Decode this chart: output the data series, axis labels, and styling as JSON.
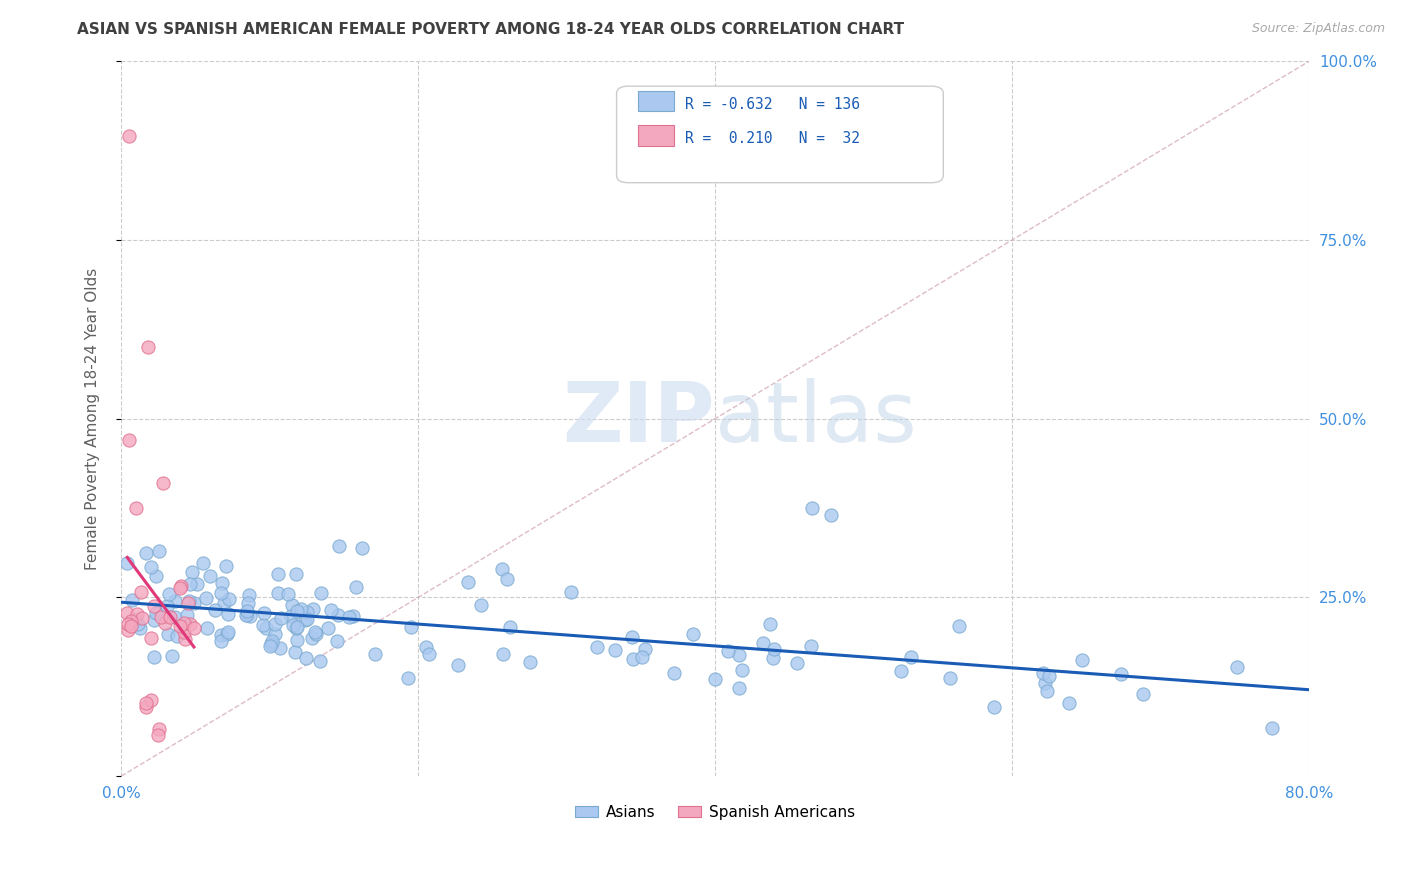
{
  "title": "ASIAN VS SPANISH AMERICAN FEMALE POVERTY AMONG 18-24 YEAR OLDS CORRELATION CHART",
  "source": "Source: ZipAtlas.com",
  "ylabel": "Female Poverty Among 18-24 Year Olds",
  "xlim": [
    0.0,
    0.8
  ],
  "ylim": [
    0.0,
    1.0
  ],
  "asian_color": "#aac8f0",
  "asian_edge": "#7aaad0",
  "spanish_color": "#f4a8c0",
  "spanish_edge": "#e07090",
  "trendline_asian_color": "#1a5cb5",
  "trendline_spanish_color": "#e03878",
  "legend_R_asian": "-0.632",
  "legend_N_asian": "136",
  "legend_R_spanish": "0.210",
  "legend_N_spanish": "32",
  "legend_label_asian": "Asians",
  "legend_label_spanish": "Spanish Americans",
  "background_color": "#ffffff",
  "grid_color": "#cccccc",
  "title_color": "#404040",
  "axis_label_color": "#606060",
  "tick_color": "#4090e0",
  "seed": 7
}
